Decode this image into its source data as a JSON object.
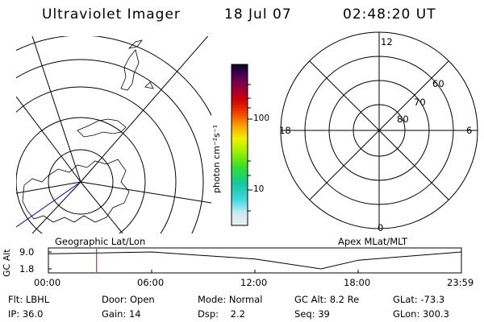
{
  "header": {
    "instrument": "Ultraviolet Imager",
    "date": "18 Jul 07",
    "time": "02:48:20 UT"
  },
  "colorbar": {
    "unit_label": "photon cm⁻²s⁻¹",
    "ticks": [
      "100",
      "10"
    ]
  },
  "right_polar": {
    "labels": {
      "mlt_top": "12",
      "mlt_left": "18",
      "mlt_right": "6",
      "mlt_bottom": "0",
      "lat_60": "60",
      "lat_70": "70",
      "lat_80": "80"
    }
  },
  "map_labels": {
    "left": "Geographic Lat/Lon",
    "right": "Apex MLat/MLT"
  },
  "altitude_plot": {
    "ylabel": "GC Alt",
    "yticks": [
      "9.0",
      "1.8"
    ],
    "xticks": [
      "00:00",
      "06:00",
      "12:00",
      "18:00",
      "23:59"
    ],
    "current_time_marker": "02:48",
    "chart_data": {
      "type": "line",
      "x": [
        "00:00",
        "06:00",
        "12:00",
        "15:50",
        "18:00",
        "23:59"
      ],
      "values": [
        8.2,
        9.0,
        6.0,
        1.8,
        5.5,
        9.0
      ],
      "ylim": [
        1.8,
        9.0
      ]
    }
  },
  "status": {
    "row1": [
      {
        "key": "Flt:",
        "value": "LBHL"
      },
      {
        "key": "Door:",
        "value": "Open"
      },
      {
        "key": "Mode:",
        "value": "Normal"
      },
      {
        "key": "GC Alt:",
        "value": "8.2 Re"
      },
      {
        "key": "GLat:",
        "value": "-73.3"
      }
    ],
    "row2": [
      {
        "key": "IP:",
        "value": "36.0"
      },
      {
        "key": "Gain:",
        "value": "14"
      },
      {
        "key": "Dsp:",
        "value": "2.2"
      },
      {
        "key": "Seq:",
        "value": "39"
      },
      {
        "key": "GLon:",
        "value": "300.3"
      }
    ]
  }
}
